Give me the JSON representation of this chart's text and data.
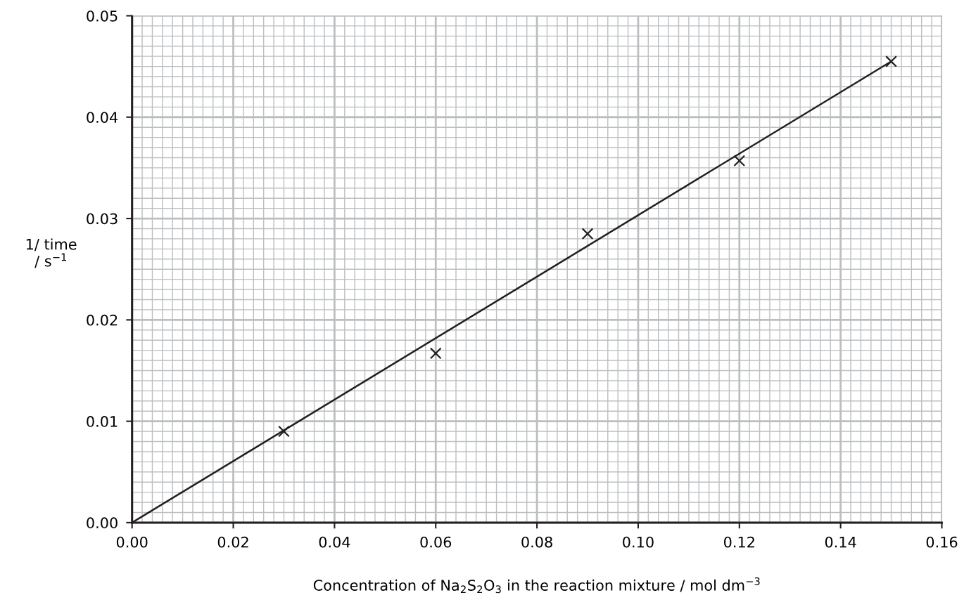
{
  "chart_data": {
    "type": "scatter",
    "xlabel": "Concentration of Na$_{2}$S$_{2}$O$_{3}$ in the reaction mixture / mol dm$^{−3}$",
    "ylabel": "1/ time\n/ s$^{−1}$",
    "series": [
      {
        "color": "#231f20",
        "marker": "cross",
        "x": [
          0.03,
          0.06,
          0.09,
          0.12,
          0.15
        ],
        "values": [
          0.009,
          0.0167,
          0.0285,
          0.0357,
          0.0455
        ]
      },
      {
        "type": "line",
        "color": "#231f20",
        "marker": "none",
        "x": [
          0,
          0.15
        ],
        "values": [
          0,
          0.0455
        ]
      }
    ],
    "xlim": [
      0,
      0.16
    ],
    "xticks": [
      {
        "value": 0,
        "label": "0.00"
      },
      {
        "value": 0.02,
        "label": "0.02"
      },
      {
        "value": 0.04,
        "label": "0.04"
      },
      {
        "value": 0.06,
        "label": "0.06"
      },
      {
        "value": 0.08,
        "label": "0.08"
      },
      {
        "value": 0.1,
        "label": "0.10"
      },
      {
        "value": 0.12,
        "label": "0.12"
      },
      {
        "value": 0.14,
        "label": "0.14"
      },
      {
        "value": 0.16,
        "label": "0.16"
      }
    ],
    "ylim": [
      0,
      0.05
    ],
    "yticks": [
      {
        "value": 0,
        "label": "0.00"
      },
      {
        "value": 0.01,
        "label": "0.01"
      },
      {
        "value": 0.02,
        "label": "0.02"
      },
      {
        "value": 0.03,
        "label": "0.03"
      },
      {
        "value": 0.04,
        "label": "0.04"
      },
      {
        "value": 0.05,
        "label": "0.05"
      }
    ],
    "grid": true
  }
}
